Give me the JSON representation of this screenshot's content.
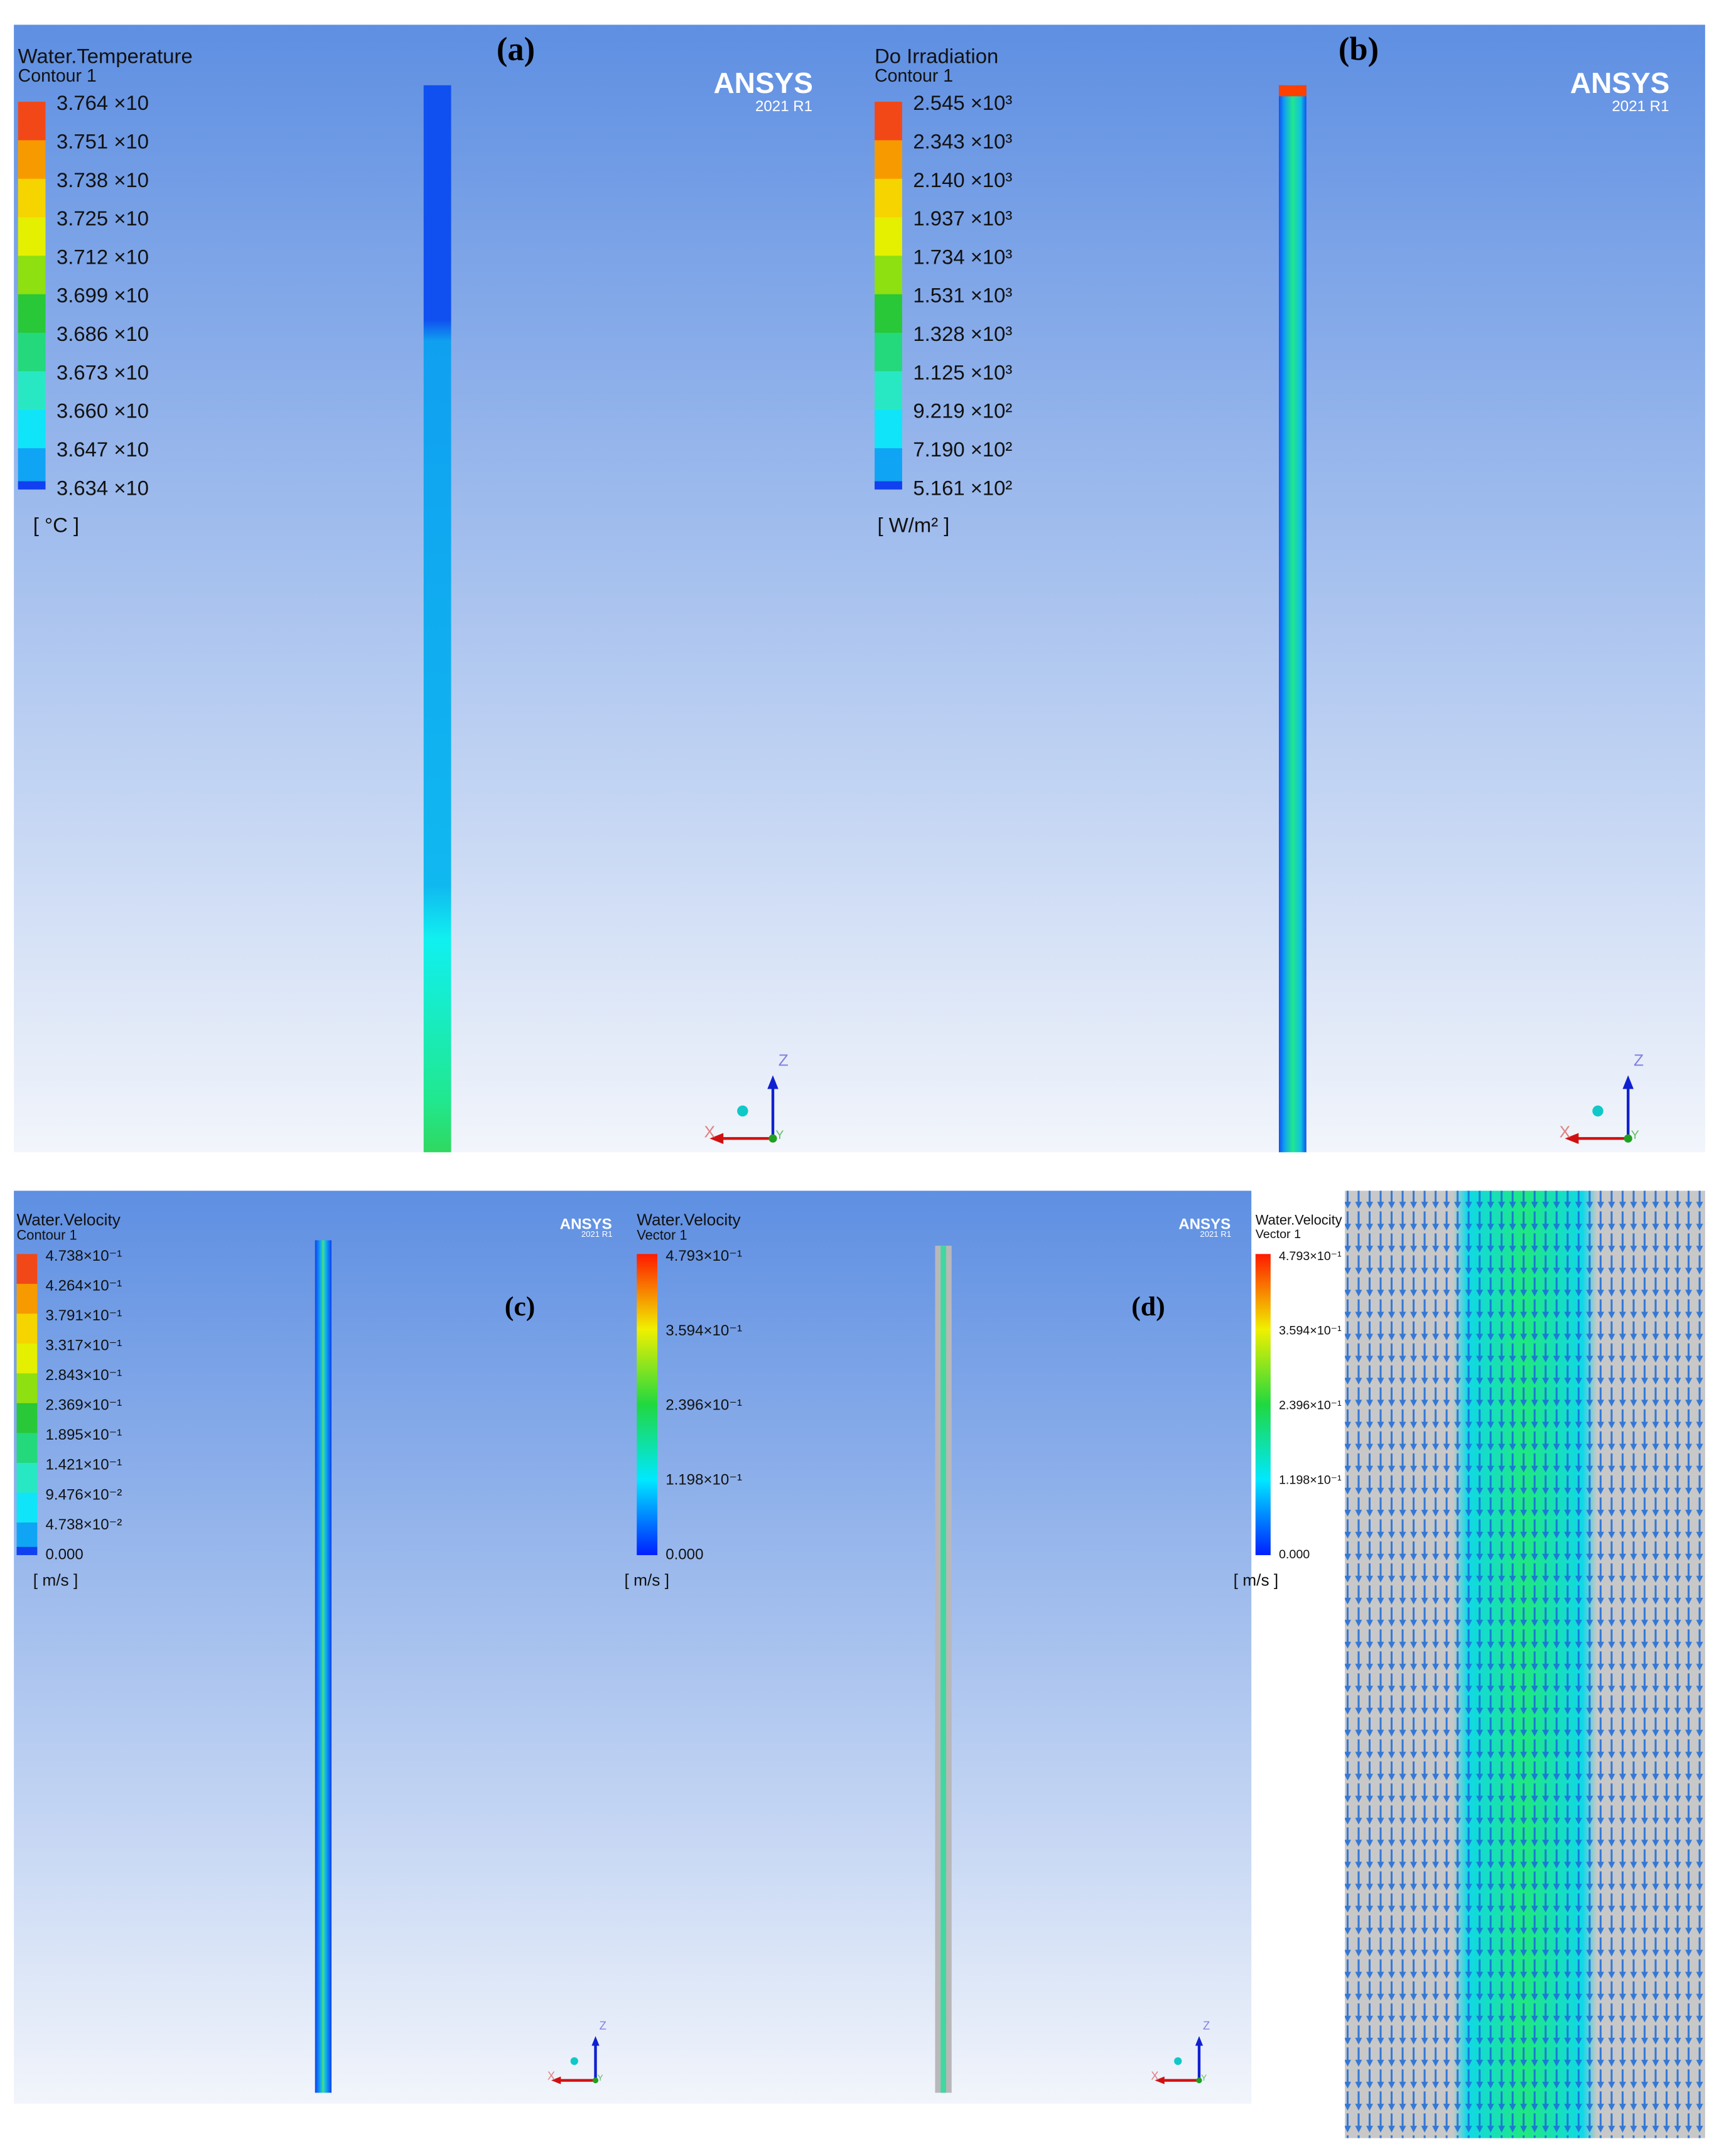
{
  "panels": [
    {
      "label": "(a)",
      "title": "Water.Temperature",
      "subtitle": "Contour 1",
      "ticks": [
        "3.764 ×10",
        "3.751 ×10",
        "3.738 ×10",
        "3.725 ×10",
        "3.712 ×10",
        "3.699 ×10",
        "3.686 ×10",
        "3.673 ×10",
        "3.660 ×10",
        "3.647 ×10",
        "3.634 ×10"
      ],
      "unit": "[ °C ]",
      "logo": "ANSYS",
      "version": "2021 R1",
      "axes": {
        "z": "Z",
        "x": "X",
        "y": "Y"
      }
    },
    {
      "label": "(b)",
      "title": "Do Irradiation",
      "subtitle": "Contour 1",
      "ticks": [
        "2.545 ×10³",
        "2.343 ×10³",
        "2.140 ×10³",
        "1.937 ×10³",
        "1.734 ×10³",
        "1.531 ×10³",
        "1.328 ×10³",
        "1.125 ×10³",
        "9.219 ×10²",
        "7.190 ×10²",
        "5.161 ×10²"
      ],
      "unit": "[ W/m² ]",
      "logo": "ANSYS",
      "version": "2021 R1",
      "axes": {
        "z": "Z",
        "x": "X",
        "y": "Y"
      }
    },
    {
      "label": "(c)",
      "title": "Water.Velocity",
      "subtitle": "Contour 1",
      "ticks": [
        "4.738×10⁻¹",
        "4.264×10⁻¹",
        "3.791×10⁻¹",
        "3.317×10⁻¹",
        "2.843×10⁻¹",
        "2.369×10⁻¹",
        "1.895×10⁻¹",
        "1.421×10⁻¹",
        "9.476×10⁻²",
        "4.738×10⁻²",
        "0.000"
      ],
      "unit": "[ m/s ]",
      "logo": "ANSYS",
      "version": "2021 R1",
      "axes": {
        "z": "Z",
        "x": "X",
        "y": "Y"
      }
    },
    {
      "label": "(d)",
      "title": "Water.Velocity",
      "subtitle": "Vector 1",
      "ticks": [
        "4.793×10⁻¹",
        "3.594×10⁻¹",
        "2.396×10⁻¹",
        "1.198×10⁻¹",
        "0.000"
      ],
      "unit": "[ m/s ]",
      "logo": "ANSYS",
      "version": "2021 R1",
      "axes": {
        "z": "Z",
        "x": "X",
        "y": "Y"
      }
    },
    {
      "title": "Water.Velocity",
      "subtitle": "Vector 1",
      "ticks": [
        "4.793×10⁻¹",
        "3.594×10⁻¹",
        "2.396×10⁻¹",
        "1.198×10⁻¹",
        "0.000"
      ],
      "unit": "[ m/s ]"
    }
  ]
}
